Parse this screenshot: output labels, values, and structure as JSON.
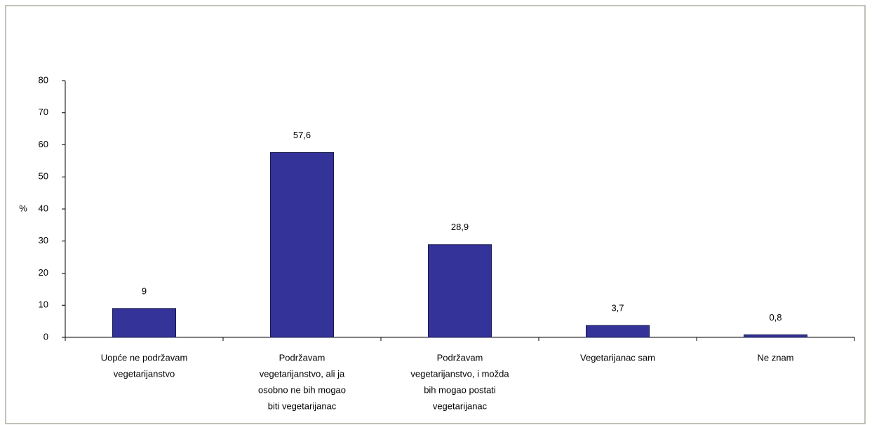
{
  "chart_data": {
    "type": "bar",
    "y_label": "%",
    "categories": [
      [
        "Uopće ne podržavam",
        "vegetarijanstvo"
      ],
      [
        "Podržavam",
        "vegetarijanstvo, ali ja",
        "osobno ne bih mogao",
        "biti vegetarijanac"
      ],
      [
        "Podržavam",
        "vegetarijanstvo, i možda",
        "bih mogao postati",
        "vegetarijanac"
      ],
      [
        "Vegetarijanac sam"
      ],
      [
        "Ne znam"
      ]
    ],
    "values": [
      9,
      57.6,
      28.9,
      3.7,
      0.8
    ],
    "value_labels": [
      "9",
      "57,6",
      "28,9",
      "3,7",
      "0,8"
    ],
    "color": "#333399",
    "ylim": [
      0,
      80
    ],
    "yticks": [
      0,
      10,
      20,
      30,
      40,
      50,
      60,
      70,
      80
    ],
    "grid": false
  }
}
